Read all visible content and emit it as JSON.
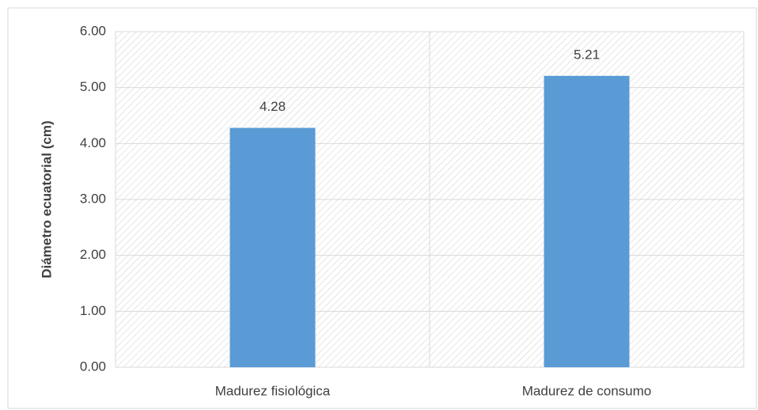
{
  "chart_data": {
    "type": "bar",
    "y_label": "Diámetro ecuatorial (cm)",
    "categories": [
      "Madurez fisiológica",
      "Madurez de consumo"
    ],
    "values": [
      4.28,
      5.21
    ],
    "color": "#5b9bd5",
    "ylim": [
      0,
      6
    ],
    "yticks": [
      {
        "value": 0,
        "label": "0.00"
      },
      {
        "value": 1,
        "label": "1.00"
      },
      {
        "value": 2,
        "label": "2.00"
      },
      {
        "value": 3,
        "label": "3.00"
      },
      {
        "value": 4,
        "label": "4.00"
      },
      {
        "value": 5,
        "label": "5.00"
      },
      {
        "value": 6,
        "label": "6.00"
      }
    ],
    "grid": true
  }
}
